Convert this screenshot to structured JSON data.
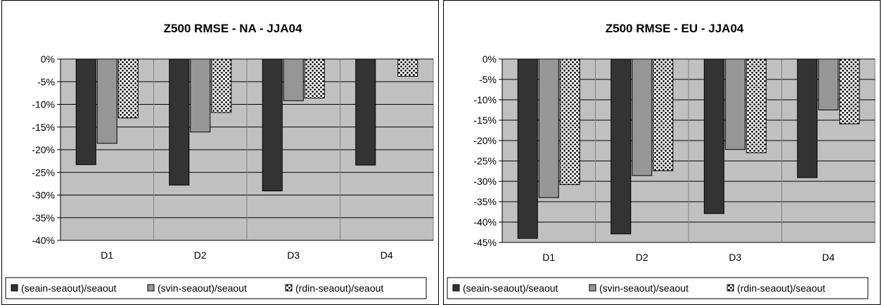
{
  "chart_data": [
    {
      "type": "bar",
      "title": "Z500 RMSE - NA - JJA04",
      "categories": [
        "D1",
        "D2",
        "D3",
        "D4"
      ],
      "series": [
        {
          "name": "(seain-seaout)/seaout",
          "values": [
            -23.3,
            -27.8,
            -29.1,
            -23.4
          ]
        },
        {
          "name": "(svin-seaout)/seaout",
          "values": [
            -18.6,
            -16.1,
            -9.2,
            0
          ]
        },
        {
          "name": "(rdin-seaout)/seaout",
          "values": [
            -13.0,
            -11.8,
            -8.6,
            -3.8
          ]
        }
      ],
      "y_ticks": [
        "0%",
        "-5%",
        "-10%",
        "-15%",
        "-20%",
        "-25%",
        "-30%",
        "-35%",
        "-40%"
      ],
      "ylim": [
        -40,
        0
      ],
      "grid": true,
      "legend": "bottom"
    },
    {
      "type": "bar",
      "title": "Z500 RMSE - EU - JJA04",
      "categories": [
        "D1",
        "D2",
        "D3",
        "D4"
      ],
      "series": [
        {
          "name": "(seain-seaout)/seaout",
          "values": [
            -44.0,
            -42.9,
            -37.9,
            -29.1
          ]
        },
        {
          "name": "(svin-seaout)/seaout",
          "values": [
            -34.0,
            -28.6,
            -22.2,
            -12.5
          ]
        },
        {
          "name": "(rdin-seaout)/seaout",
          "values": [
            -30.8,
            -27.4,
            -23.0,
            -15.9
          ]
        }
      ],
      "y_ticks": [
        "0%",
        "-5%",
        "-10%",
        "-15%",
        "-20%",
        "-25%",
        "-30%",
        "-35%",
        "-40%",
        "-45%"
      ],
      "ylim": [
        -45,
        0
      ],
      "grid": true,
      "legend": "bottom"
    }
  ],
  "series_colors": [
    "#333333",
    "#969696",
    "#ffffff"
  ],
  "plot_background": "#c0c0c0"
}
